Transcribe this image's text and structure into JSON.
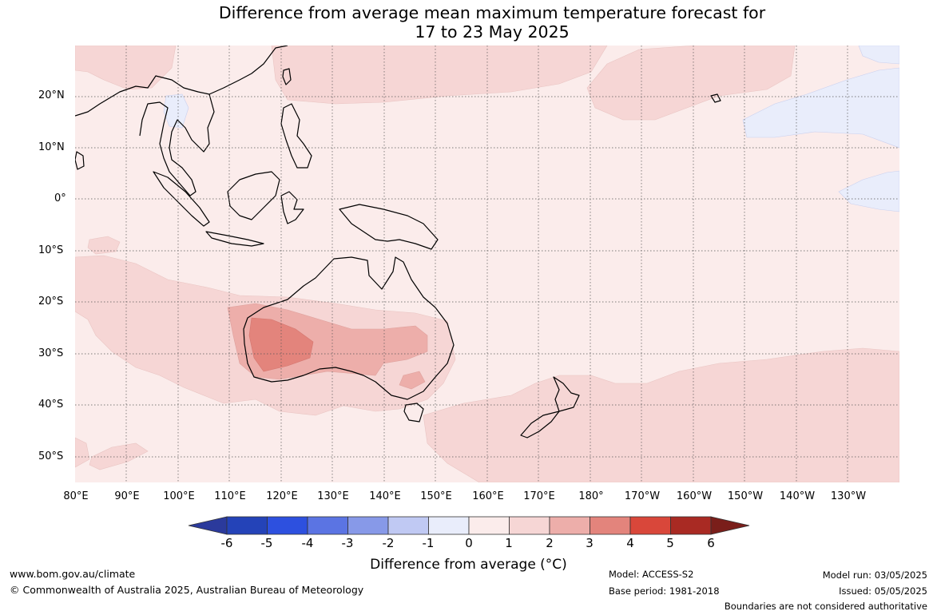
{
  "title": {
    "line1": "Difference from average mean maximum temperature forecast for",
    "line2": "17 to 23 May 2025"
  },
  "map": {
    "latitude_labels": [
      "20°N",
      "10°N",
      "0°",
      "10°S",
      "20°S",
      "30°S",
      "40°S",
      "50°S"
    ],
    "longitude_labels": [
      "80°E",
      "90°E",
      "100°E",
      "110°E",
      "120°E",
      "130°E",
      "140°E",
      "150°E",
      "160°E",
      "170°E",
      "180°",
      "170°W",
      "160°W",
      "150°W",
      "140°W",
      "130°W"
    ],
    "background_anomaly_class": "0 to 1",
    "features": [
      {
        "name": "western-australia-warm-core",
        "anomaly_class": "2 to 3"
      },
      {
        "name": "southern-australia-band",
        "anomaly_class": "1 to 2"
      },
      {
        "name": "indian-ocean-plume",
        "anomaly_class": "1 to 2"
      },
      {
        "name": "south-pacific-warm-region",
        "anomaly_class": "1 to 2"
      },
      {
        "name": "central-pacific-cool-patch",
        "anomaly_class": "-1 to 0"
      },
      {
        "name": "northeast-pacific-cool-patch",
        "anomaly_class": "-1 to 0"
      }
    ]
  },
  "colorbar": {
    "tick_labels": [
      "-6",
      "-5",
      "-4",
      "-3",
      "-2",
      "-1",
      "0",
      "1",
      "2",
      "3",
      "4",
      "5",
      "6"
    ],
    "colors": [
      "#2b3a9c",
      "#2443b8",
      "#2d50df",
      "#5b74e3",
      "#8799e8",
      "#c0c9f3",
      "#e9edfb",
      "#fbeceb",
      "#f6d6d5",
      "#edaeaa",
      "#e3847c",
      "#d9473a",
      "#a92a23",
      "#7a1e1a"
    ],
    "label": "Difference from average (°C)"
  },
  "footer": {
    "website": "www.bom.gov.au/climate",
    "copyright": "© Commonwealth of Australia 2025, Australian Bureau of Meteorology",
    "model": "Model: ACCESS-S2",
    "base_period": "Base period: 1981-2018",
    "model_run": "Model run: 03/05/2025",
    "issued": "Issued: 05/05/2025",
    "disclaimer": "Boundaries are not considered authoritative"
  }
}
